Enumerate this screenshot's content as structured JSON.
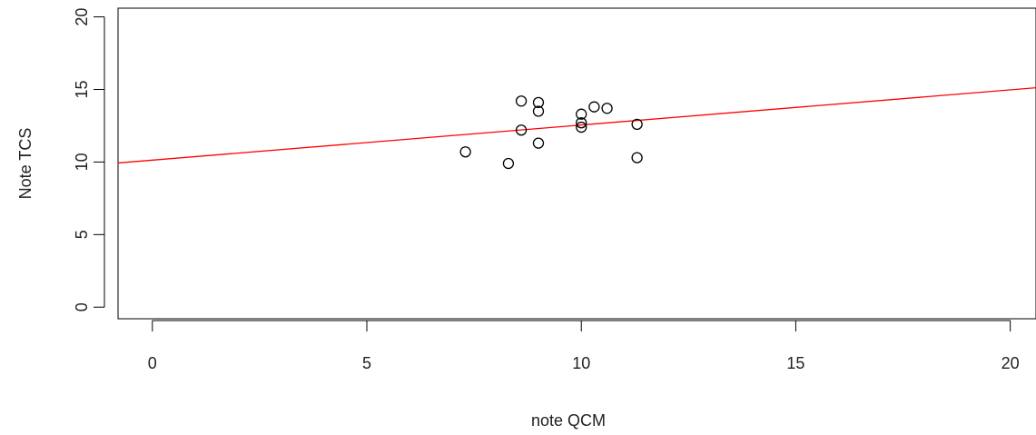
{
  "chart_data": {
    "type": "scatter",
    "title": "",
    "xlabel": "note QCM",
    "ylabel": "Note TCS",
    "xlim": [
      -0.8,
      20.6
    ],
    "ylim": [
      -0.8,
      20.6
    ],
    "x_ticks": [
      0,
      5,
      10,
      15,
      20
    ],
    "y_ticks": [
      0,
      5,
      10,
      15,
      20
    ],
    "grid": false,
    "legend": "none",
    "series": [
      {
        "points": [
          {
            "x": 7.3,
            "y": 10.7
          },
          {
            "x": 8.3,
            "y": 9.9
          },
          {
            "x": 8.6,
            "y": 14.2
          },
          {
            "x": 8.6,
            "y": 12.2
          },
          {
            "x": 9.0,
            "y": 14.1
          },
          {
            "x": 9.0,
            "y": 13.5
          },
          {
            "x": 9.0,
            "y": 11.3
          },
          {
            "x": 10.0,
            "y": 13.3
          },
          {
            "x": 10.0,
            "y": 12.7
          },
          {
            "x": 10.0,
            "y": 12.4
          },
          {
            "x": 10.3,
            "y": 13.8
          },
          {
            "x": 10.6,
            "y": 13.7
          },
          {
            "x": 11.3,
            "y": 12.6
          },
          {
            "x": 11.3,
            "y": 10.3
          }
        ],
        "marker": "open-circle",
        "color": "#000000"
      }
    ],
    "regression_line": {
      "intercept": 10.13,
      "slope": 0.242,
      "color": "#ff0000"
    }
  }
}
